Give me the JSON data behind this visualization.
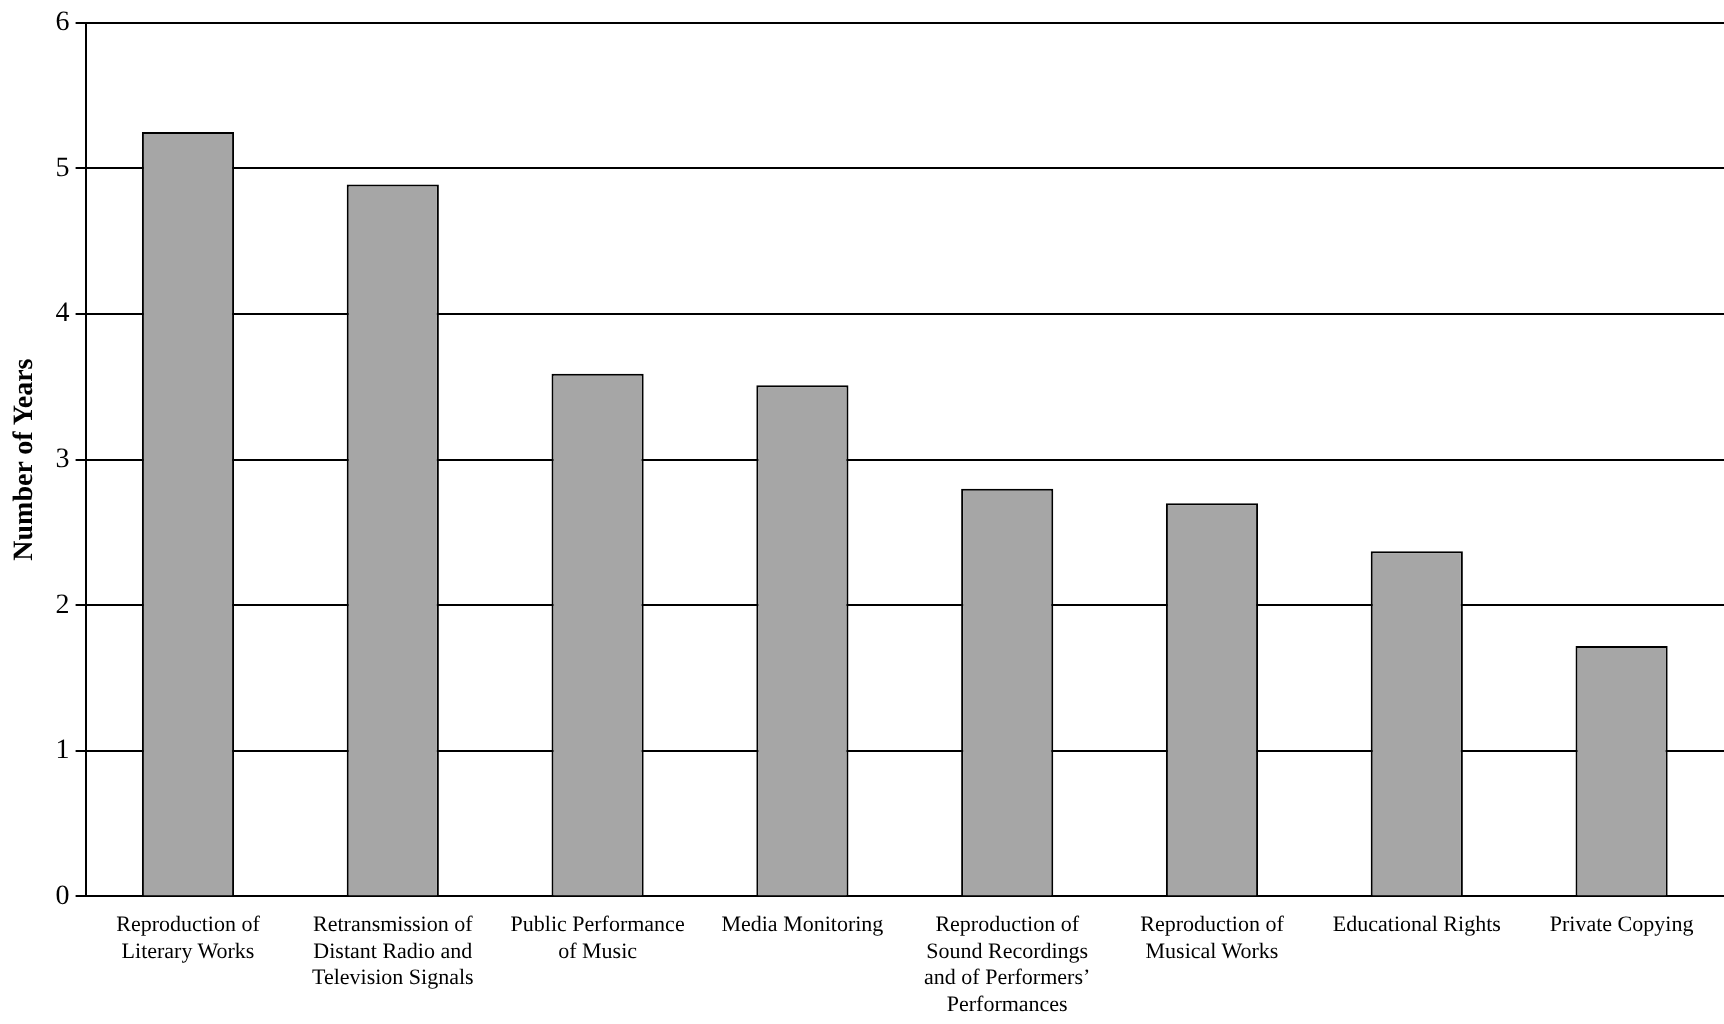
{
  "chart_data": {
    "type": "bar",
    "ylabel": "Number of Years",
    "categories": [
      "Reproduction of Literary Works",
      "Retransmission of Distant Radio and Television Signals",
      "Public Performance of Music",
      "Media Monitoring",
      "Reproduction of Sound Recordings and of Performers’ Performances",
      "Reproduction of Musical Works",
      "Educational Rights",
      "Private Copying"
    ],
    "values": [
      5.25,
      4.89,
      3.59,
      3.51,
      2.8,
      2.7,
      2.37,
      1.72
    ],
    "color": "#a6a6a6",
    "ylim": [
      0,
      6
    ],
    "yticks": [
      0,
      1,
      2,
      3,
      4,
      5,
      6
    ],
    "grid": "y",
    "legend": false
  }
}
